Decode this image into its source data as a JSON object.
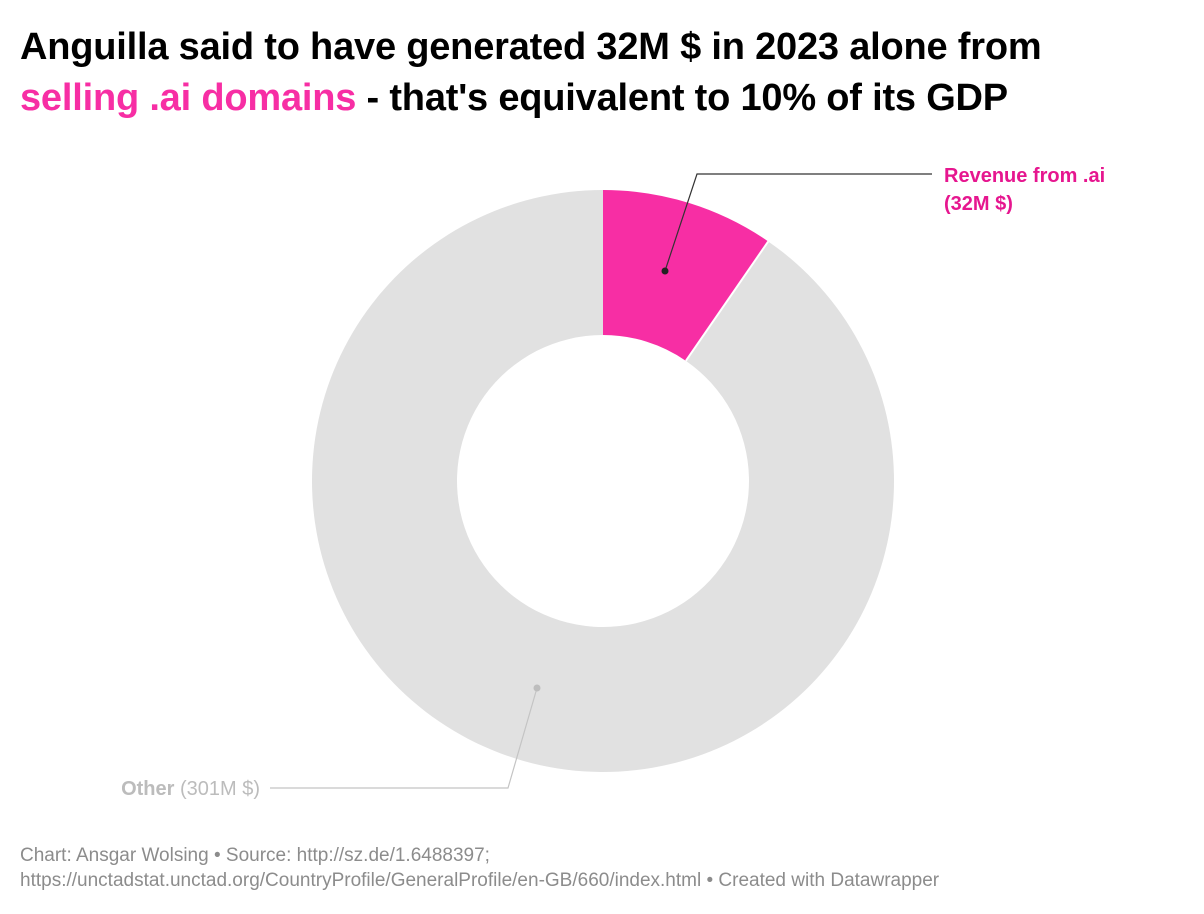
{
  "title": {
    "part1": "Anguilla said to have generated 32M $ in 2023 alone from",
    "highlight": "selling .ai domains",
    "part2": " - that's equivalent to 10% of its GDP"
  },
  "chart_data": {
    "type": "pie",
    "style": "donut",
    "title": "Anguilla said to have generated 32M $ in 2023 alone from selling .ai domains - that's equivalent to 10% of its GDP",
    "units": "M $",
    "slices": [
      {
        "label_bold": "Revenue from .ai",
        "label_value": "(32M $)",
        "value": 32,
        "color": "#f72ea4",
        "label_color": "#e6168f"
      },
      {
        "label_bold": "Other",
        "label_value": "(301M $)",
        "value": 301,
        "color": "#e1e1e1",
        "label_color": "#bcbcbc"
      }
    ]
  },
  "footer": {
    "line1": "Chart: Ansgar Wolsing • Source: http://sz.de/1.6488397;",
    "line2": "https://unctadstat.unctad.org/CountryProfile/GeneralProfile/en-GB/660/index.html • Created with Datawrapper"
  }
}
